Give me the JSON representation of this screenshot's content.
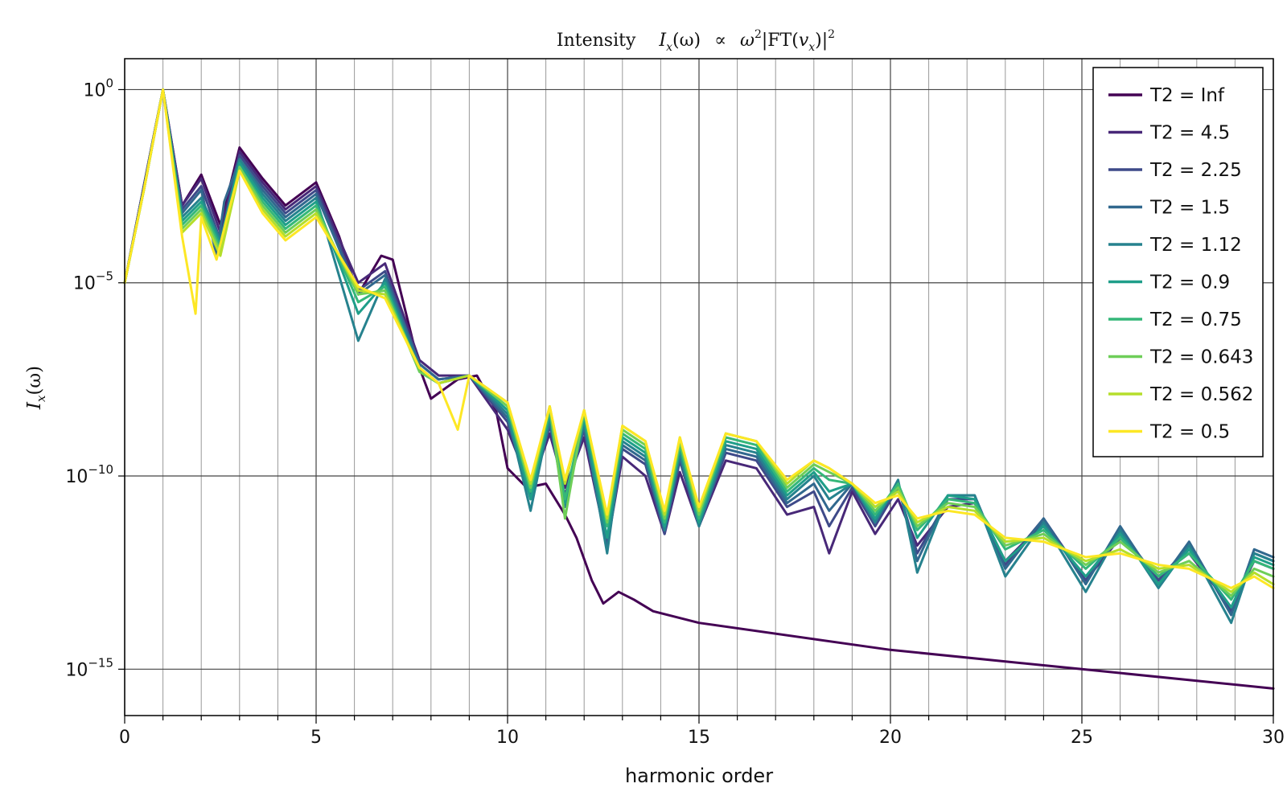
{
  "chart_data": {
    "type": "line",
    "title": "Intensity    I_x(ω)  ∝  ω²|FT(v_x)|²",
    "title_parts": {
      "word": "Intensity",
      "lhs": "I",
      "lhs_sub": "x",
      "lhs_arg": "(ω)",
      "prop": "∝",
      "omega": "ω",
      "omega_sup": "2",
      "ft_open": "|FT(",
      "v": "v",
      "v_sub": "x",
      "ft_close": ")|",
      "ft_sup": "2"
    },
    "xlabel": "harmonic order",
    "ylabel": "I_x(ω)",
    "ylabel_parts": {
      "base": "I",
      "sub": "x",
      "arg": "(ω)"
    },
    "xlim": [
      0,
      30
    ],
    "ylim_log10": [
      -16.2,
      0.8
    ],
    "yscale": "log",
    "grid": true,
    "legend_position": "top-right",
    "xticks": [
      0,
      5,
      10,
      15,
      20,
      25,
      30
    ],
    "xtick_labels": [
      "0",
      "5",
      "10",
      "15",
      "20",
      "25",
      "30"
    ],
    "yticks_log10": [
      0,
      -5,
      -10,
      -15
    ],
    "ytick_labels": [
      {
        "base": "10",
        "exp": "0"
      },
      {
        "base": "10",
        "exp": "−5"
      },
      {
        "base": "10",
        "exp": "−10"
      },
      {
        "base": "10",
        "exp": "−15"
      }
    ],
    "series_colors": [
      "#440154",
      "#482878",
      "#3e4a89",
      "#31688e",
      "#26828e",
      "#1f9e89",
      "#35b779",
      "#6ece58",
      "#b5de2b",
      "#fde725"
    ],
    "series": [
      {
        "name": "T2 = Inf",
        "x": [
          0,
          0.5,
          1.0,
          1.5,
          2.0,
          2.5,
          3.0,
          3.6,
          4.2,
          5.0,
          5.6,
          6.1,
          6.7,
          7.0,
          7.7,
          8.0,
          8.7,
          9.2,
          9.7,
          10.0,
          10.5,
          11.0,
          11.5,
          11.8,
          12.2,
          12.5,
          12.9,
          13.3,
          13.8,
          15.0,
          20.0,
          25.0,
          30.0
        ],
        "y_log10": [
          -5.0,
          -2.5,
          0.0,
          -3.0,
          -2.2,
          -3.5,
          -1.5,
          -2.3,
          -3.0,
          -2.4,
          -3.8,
          -5.3,
          -4.3,
          -4.4,
          -7.2,
          -8.0,
          -7.5,
          -7.4,
          -8.3,
          -9.8,
          -10.3,
          -10.2,
          -11.0,
          -11.6,
          -12.7,
          -13.3,
          -13.0,
          -13.2,
          -13.5,
          -13.8,
          -14.5,
          -15.0,
          -15.5
        ]
      },
      {
        "name": "T2 = 4.5",
        "x": [
          0,
          0.5,
          1.0,
          1.5,
          2.0,
          2.5,
          3.0,
          3.6,
          4.2,
          5.0,
          6.1,
          6.8,
          7.7,
          8.2,
          9.0,
          10.0,
          10.6,
          11.1,
          11.5,
          12.0,
          12.6,
          13.0,
          13.6,
          14.1,
          14.5,
          15.0,
          15.7,
          16.5,
          17.3,
          18.0,
          18.4,
          19.0,
          19.6,
          20.2,
          20.7,
          21.5,
          22.2,
          23.0,
          24.0,
          25.1,
          26.0,
          27.0,
          27.8,
          28.9,
          29.5,
          30.0
        ],
        "y_log10": [
          -5.0,
          -2.5,
          0.0,
          -3.0,
          -2.3,
          -3.7,
          -1.6,
          -2.4,
          -3.1,
          -2.5,
          -5.0,
          -4.5,
          -7.0,
          -7.4,
          -7.4,
          -8.8,
          -10.3,
          -8.9,
          -10.3,
          -9.0,
          -11.8,
          -9.5,
          -10.0,
          -11.5,
          -9.9,
          -11.3,
          -9.6,
          -9.8,
          -11.0,
          -10.8,
          -12.0,
          -10.4,
          -11.5,
          -10.6,
          -11.8,
          -10.8,
          -10.7,
          -12.2,
          -11.2,
          -12.7,
          -11.6,
          -12.6,
          -12.0,
          -13.4,
          -12.2,
          -12.4
        ]
      },
      {
        "name": "T2 = 2.25",
        "x": [
          0,
          0.5,
          1.0,
          1.5,
          2.0,
          2.5,
          3.0,
          3.6,
          4.2,
          5.0,
          6.1,
          6.8,
          7.7,
          8.2,
          9.0,
          10.0,
          10.6,
          11.1,
          11.5,
          12.0,
          12.6,
          13.0,
          13.6,
          14.1,
          14.5,
          15.0,
          15.7,
          16.5,
          17.3,
          18.0,
          18.4,
          19.0,
          19.6,
          20.2,
          20.7,
          21.5,
          22.2,
          23.0,
          24.0,
          25.1,
          26.0,
          27.0,
          27.8,
          28.9,
          29.5,
          30.0
        ],
        "y_log10": [
          -5.0,
          -2.5,
          0.0,
          -3.1,
          -2.5,
          -3.9,
          -1.7,
          -2.5,
          -3.2,
          -2.6,
          -5.2,
          -4.7,
          -7.1,
          -7.5,
          -7.4,
          -8.6,
          -10.5,
          -8.7,
          -10.5,
          -8.8,
          -11.8,
          -9.3,
          -9.7,
          -11.5,
          -9.6,
          -11.3,
          -9.4,
          -9.6,
          -10.8,
          -10.4,
          -11.3,
          -10.3,
          -11.3,
          -10.3,
          -12.0,
          -10.6,
          -10.6,
          -12.3,
          -11.1,
          -12.7,
          -11.4,
          -12.7,
          -11.8,
          -13.5,
          -12.0,
          -12.2
        ]
      },
      {
        "name": "T2 = 1.5",
        "x": [
          0,
          0.5,
          1.0,
          1.5,
          2.0,
          2.4,
          2.6,
          3.0,
          3.6,
          4.2,
          5.0,
          6.1,
          6.8,
          7.7,
          8.2,
          9.0,
          10.0,
          10.6,
          11.1,
          11.5,
          12.0,
          12.6,
          13.0,
          13.6,
          14.1,
          14.5,
          15.0,
          15.7,
          16.5,
          17.3,
          18.0,
          18.4,
          19.0,
          19.6,
          20.2,
          20.7,
          21.5,
          22.2,
          23.0,
          24.0,
          25.1,
          26.0,
          27.0,
          27.8,
          28.9,
          29.5,
          30.0
        ],
        "y_log10": [
          -5.0,
          -2.6,
          0.0,
          -3.2,
          -2.6,
          -4.3,
          -2.9,
          -1.8,
          -2.6,
          -3.3,
          -2.7,
          -5.3,
          -4.8,
          -7.1,
          -7.5,
          -7.4,
          -8.5,
          -10.6,
          -8.6,
          -10.6,
          -8.7,
          -11.9,
          -9.2,
          -9.6,
          -11.4,
          -9.5,
          -11.3,
          -9.3,
          -9.5,
          -10.7,
          -10.2,
          -10.9,
          -10.2,
          -11.2,
          -10.2,
          -12.2,
          -10.5,
          -10.5,
          -12.4,
          -11.1,
          -12.8,
          -11.3,
          -12.8,
          -11.7,
          -13.6,
          -11.9,
          -12.1
        ]
      },
      {
        "name": "T2 = 1.12",
        "x": [
          0,
          0.5,
          1.0,
          1.5,
          2.0,
          2.5,
          3.0,
          3.6,
          4.2,
          5.0,
          6.1,
          6.8,
          7.7,
          8.2,
          9.0,
          10.0,
          10.6,
          11.1,
          11.5,
          12.0,
          12.6,
          13.0,
          13.6,
          14.1,
          14.5,
          15.0,
          15.7,
          16.5,
          17.3,
          18.0,
          18.4,
          19.0,
          19.6,
          20.2,
          20.7,
          21.5,
          22.2,
          23.0,
          24.0,
          25.1,
          26.0,
          27.0,
          27.8,
          28.9,
          29.5,
          30.0
        ],
        "y_log10": [
          -5.0,
          -2.6,
          0.0,
          -3.3,
          -2.8,
          -3.9,
          -1.8,
          -2.7,
          -3.4,
          -2.8,
          -6.5,
          -4.9,
          -7.2,
          -7.6,
          -7.4,
          -8.4,
          -10.9,
          -8.5,
          -10.8,
          -8.6,
          -12.0,
          -9.1,
          -9.5,
          -11.4,
          -9.4,
          -11.3,
          -9.2,
          -9.4,
          -10.6,
          -10.0,
          -10.6,
          -10.2,
          -11.2,
          -10.1,
          -12.5,
          -10.5,
          -10.5,
          -12.6,
          -11.2,
          -13.0,
          -11.4,
          -12.9,
          -11.8,
          -13.8,
          -12.0,
          -12.2
        ]
      },
      {
        "name": "T2 = 0.9",
        "x": [
          0,
          0.5,
          1.0,
          1.5,
          2.0,
          2.5,
          3.0,
          3.6,
          4.2,
          5.0,
          6.1,
          6.8,
          7.7,
          8.2,
          9.0,
          10.0,
          10.6,
          11.1,
          11.5,
          12.0,
          12.6,
          13.0,
          13.6,
          14.1,
          14.5,
          15.0,
          15.7,
          16.5,
          17.3,
          18.0,
          18.4,
          19.0,
          19.6,
          20.2,
          20.7,
          21.5,
          22.2,
          23.0,
          24.0,
          25.1,
          26.0,
          27.0,
          27.8,
          28.9,
          29.5,
          30.0
        ],
        "y_log10": [
          -5.0,
          -2.6,
          0.0,
          -3.4,
          -2.9,
          -4.0,
          -1.9,
          -2.8,
          -3.5,
          -2.9,
          -5.8,
          -5.0,
          -7.3,
          -7.6,
          -7.4,
          -8.3,
          -10.6,
          -8.4,
          -10.7,
          -8.5,
          -11.6,
          -9.0,
          -9.4,
          -11.3,
          -9.3,
          -11.2,
          -9.1,
          -9.3,
          -10.5,
          -9.9,
          -10.4,
          -10.2,
          -11.1,
          -10.2,
          -11.6,
          -10.5,
          -10.6,
          -12.2,
          -11.3,
          -12.6,
          -11.5,
          -12.8,
          -11.9,
          -13.4,
          -12.1,
          -12.3
        ]
      },
      {
        "name": "T2 = 0.75",
        "x": [
          0,
          0.5,
          1.0,
          1.5,
          2.0,
          2.5,
          3.0,
          3.6,
          4.2,
          5.0,
          6.1,
          6.8,
          7.7,
          8.2,
          9.0,
          10.0,
          10.6,
          11.1,
          11.5,
          12.0,
          12.6,
          13.0,
          13.6,
          14.1,
          14.5,
          15.0,
          15.7,
          16.5,
          17.3,
          18.0,
          18.4,
          19.0,
          19.6,
          20.2,
          20.7,
          21.5,
          22.2,
          23.0,
          24.0,
          25.1,
          26.0,
          27.0,
          27.8,
          28.9,
          29.5,
          30.0
        ],
        "y_log10": [
          -5.0,
          -2.6,
          0.0,
          -3.5,
          -3.0,
          -4.1,
          -2.0,
          -2.9,
          -3.6,
          -3.0,
          -5.5,
          -5.1,
          -7.3,
          -7.6,
          -7.4,
          -8.2,
          -10.4,
          -8.3,
          -10.6,
          -8.4,
          -11.3,
          -8.9,
          -9.3,
          -11.2,
          -9.2,
          -11.1,
          -9.0,
          -9.2,
          -10.4,
          -9.8,
          -10.1,
          -10.2,
          -11.0,
          -10.2,
          -11.4,
          -10.6,
          -10.7,
          -11.9,
          -11.4,
          -12.4,
          -11.6,
          -12.6,
          -12.0,
          -13.2,
          -12.2,
          -12.4
        ]
      },
      {
        "name": "T2 = 0.643",
        "x": [
          0,
          0.5,
          1.0,
          1.5,
          2.0,
          2.5,
          3.0,
          3.6,
          4.2,
          5.0,
          6.1,
          6.8,
          7.7,
          8.2,
          9.0,
          10.0,
          10.6,
          11.1,
          11.5,
          12.0,
          12.6,
          13.0,
          13.6,
          14.1,
          14.5,
          15.0,
          15.7,
          16.5,
          17.3,
          18.0,
          18.4,
          19.0,
          19.6,
          20.2,
          20.7,
          21.5,
          22.2,
          23.0,
          24.0,
          25.1,
          26.0,
          27.0,
          27.8,
          28.9,
          29.5,
          30.0
        ],
        "y_log10": [
          -5.0,
          -2.6,
          0.0,
          -3.6,
          -3.1,
          -4.2,
          -2.0,
          -3.0,
          -3.7,
          -3.1,
          -5.3,
          -5.2,
          -7.3,
          -7.6,
          -7.4,
          -8.2,
          -10.3,
          -8.2,
          -11.1,
          -8.3,
          -11.2,
          -8.8,
          -9.2,
          -11.1,
          -9.1,
          -11.0,
          -8.9,
          -9.1,
          -10.3,
          -9.7,
          -9.9,
          -10.2,
          -10.9,
          -10.3,
          -11.3,
          -10.7,
          -10.8,
          -11.8,
          -11.5,
          -12.3,
          -11.7,
          -12.5,
          -12.2,
          -13.1,
          -12.4,
          -12.6
        ]
      },
      {
        "name": "T2 = 0.562",
        "x": [
          0,
          0.5,
          1.0,
          1.5,
          2.0,
          2.5,
          3.0,
          3.6,
          4.2,
          5.0,
          6.1,
          6.8,
          7.7,
          8.2,
          9.0,
          10.0,
          10.6,
          11.1,
          11.5,
          12.0,
          12.6,
          13.0,
          13.6,
          14.1,
          14.5,
          15.0,
          15.7,
          16.5,
          17.3,
          18.0,
          18.4,
          19.0,
          19.6,
          20.2,
          20.7,
          21.5,
          22.2,
          23.0,
          24.0,
          25.1,
          26.0,
          27.0,
          27.8,
          28.9,
          29.5,
          30.0
        ],
        "y_log10": [
          -5.0,
          -2.6,
          0.0,
          -3.7,
          -3.2,
          -4.3,
          -2.1,
          -3.1,
          -3.8,
          -3.2,
          -5.2,
          -5.3,
          -7.2,
          -7.6,
          -7.4,
          -8.1,
          -10.2,
          -8.2,
          -10.2,
          -8.3,
          -11.1,
          -8.7,
          -9.1,
          -11.0,
          -9.0,
          -10.9,
          -8.9,
          -9.1,
          -10.2,
          -9.6,
          -9.8,
          -10.2,
          -10.8,
          -10.4,
          -11.2,
          -10.8,
          -10.9,
          -11.7,
          -11.6,
          -12.2,
          -11.9,
          -12.4,
          -12.3,
          -13.0,
          -12.5,
          -12.8
        ]
      },
      {
        "name": "T2 = 0.5",
        "x": [
          0,
          0.5,
          1.0,
          1.5,
          1.85,
          2.0,
          2.4,
          2.7,
          3.0,
          3.6,
          4.2,
          5.0,
          6.1,
          6.8,
          7.7,
          8.2,
          8.7,
          9.0,
          10.0,
          10.6,
          11.1,
          11.5,
          12.0,
          12.6,
          13.0,
          13.6,
          14.1,
          14.5,
          15.0,
          15.7,
          16.5,
          17.3,
          18.0,
          18.4,
          19.0,
          19.6,
          20.2,
          20.7,
          21.5,
          22.2,
          23.0,
          24.0,
          25.1,
          26.0,
          27.0,
          27.8,
          28.9,
          29.5,
          30.0
        ],
        "y_log10": [
          -5.0,
          -2.6,
          0.0,
          -3.8,
          -5.8,
          -3.3,
          -4.4,
          -3.2,
          -2.1,
          -3.2,
          -3.9,
          -3.3,
          -5.1,
          -5.4,
          -7.2,
          -7.6,
          -8.8,
          -7.4,
          -8.1,
          -10.1,
          -8.2,
          -10.1,
          -8.3,
          -11.0,
          -8.7,
          -9.1,
          -10.9,
          -9.0,
          -10.8,
          -8.9,
          -9.1,
          -10.1,
          -9.6,
          -9.8,
          -10.2,
          -10.7,
          -10.5,
          -11.1,
          -10.9,
          -11.0,
          -11.6,
          -11.7,
          -12.1,
          -12.0,
          -12.3,
          -12.4,
          -12.9,
          -12.6,
          -12.9
        ]
      }
    ]
  }
}
